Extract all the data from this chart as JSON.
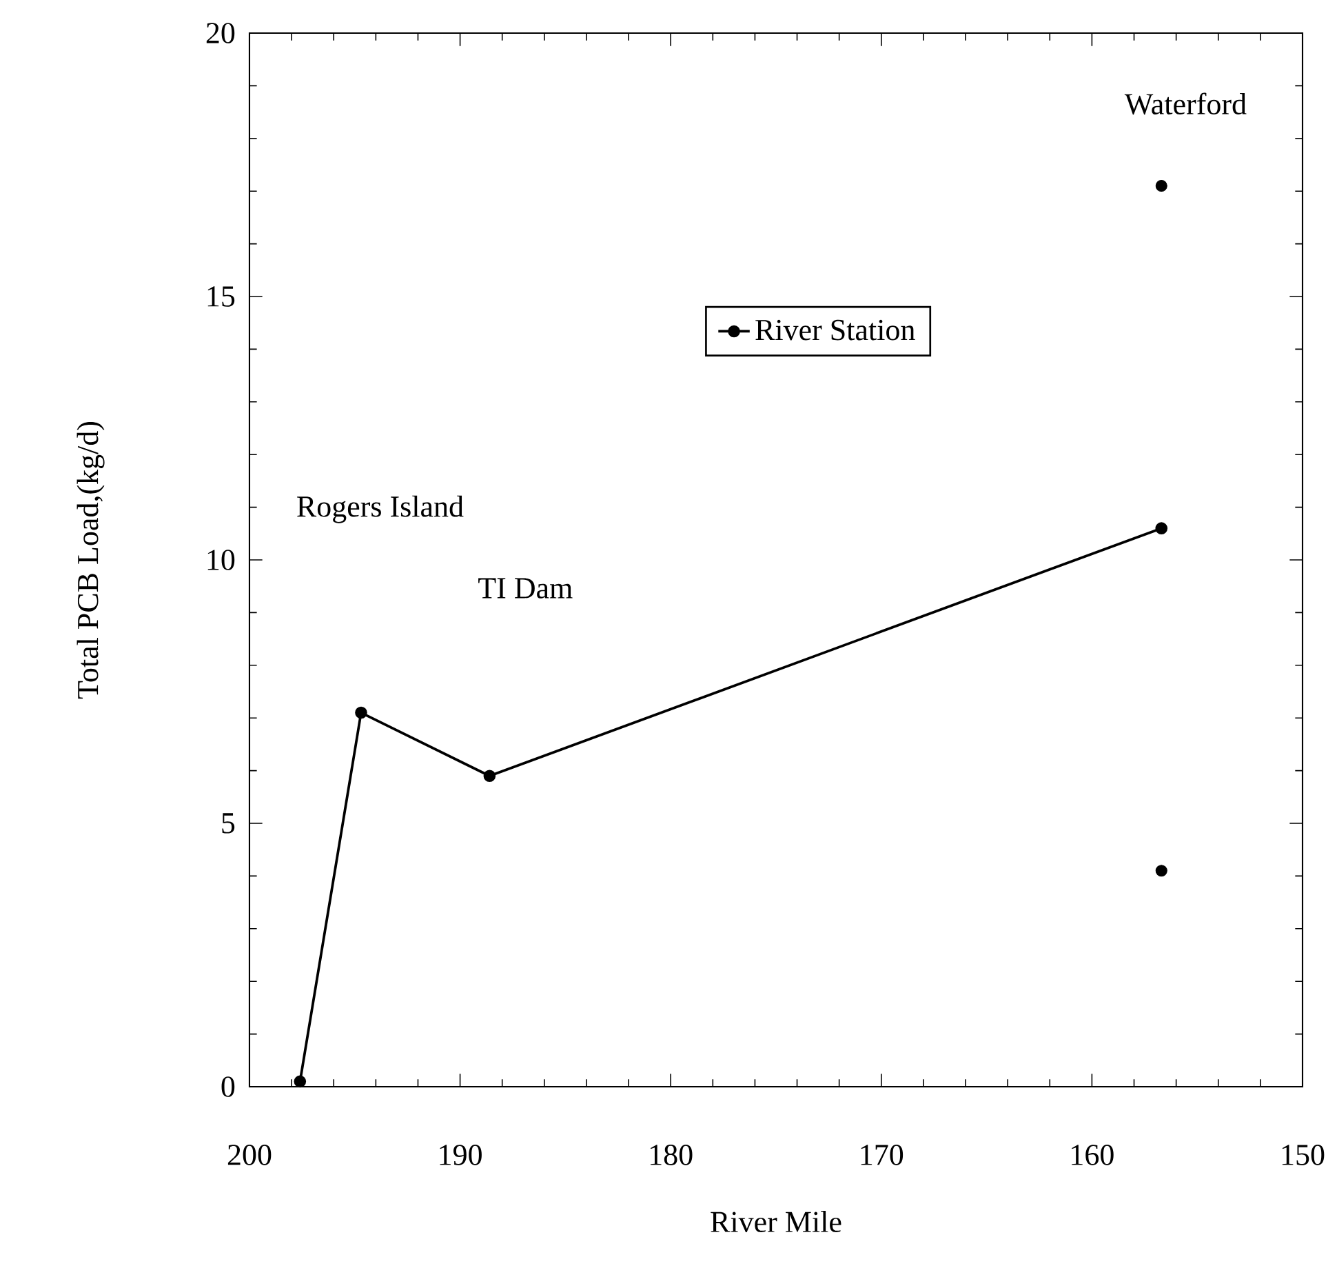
{
  "chart_data": {
    "type": "line",
    "xlabel": "River Mile",
    "ylabel": "Total PCB Load,(kg/d)",
    "xlim": [
      200,
      150
    ],
    "xticks": [
      200,
      190,
      180,
      170,
      160,
      150
    ],
    "ylim": [
      0,
      20
    ],
    "yticks": [
      0,
      5,
      10,
      15,
      20
    ],
    "series": [
      {
        "name": "River Station",
        "color": "#000000",
        "x": [
          197.6,
          194.7,
          188.6,
          156.7
        ],
        "values": [
          0.1,
          7.1,
          5.9,
          10.6
        ]
      },
      {
        "type": "scatter",
        "color": "#000000",
        "x": [
          156.7,
          156.7
        ],
        "values": [
          17.1,
          4.1
        ]
      }
    ],
    "annotations": [
      "Rogers Island",
      "TI Dam",
      "Waterford"
    ],
    "marker": "circle",
    "line_style": "solid",
    "legend": "top",
    "grid": false
  }
}
